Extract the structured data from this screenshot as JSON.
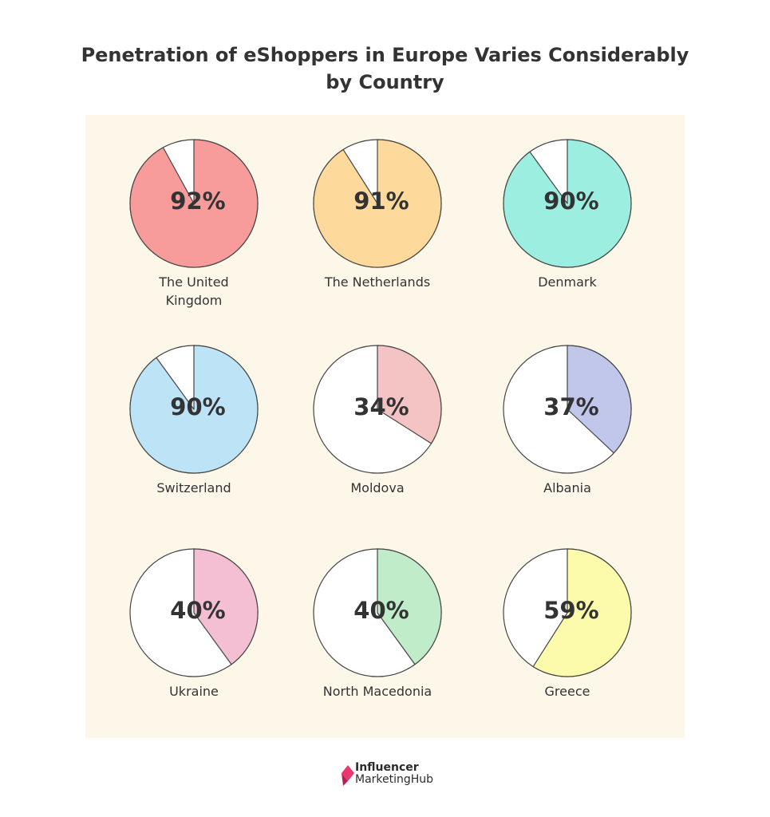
{
  "title_line1": "Penetration of eShoppers in Europe Varies Considerably",
  "title_line2": "by Country",
  "chart_data": {
    "type": "pie",
    "title": "Penetration of eShoppers in Europe Varies Considerably by Country",
    "pies": [
      {
        "country": "The United Kingdom",
        "label_lines": [
          "The United",
          "Kingdom"
        ],
        "value": 92,
        "value_label": "92%",
        "color": "#f79b9b"
      },
      {
        "country": "The Netherlands",
        "label_lines": [
          "The Netherlands"
        ],
        "value": 91,
        "value_label": "91%",
        "color": "#fdd99b"
      },
      {
        "country": "Denmark",
        "label_lines": [
          "Denmark"
        ],
        "value": 90,
        "value_label": "90%",
        "color": "#9cefe0"
      },
      {
        "country": "Switzerland",
        "label_lines": [
          "Switzerland"
        ],
        "value": 90,
        "value_label": "90%",
        "color": "#bde3f7"
      },
      {
        "country": "Moldova",
        "label_lines": [
          "Moldova"
        ],
        "value": 34,
        "value_label": "34%",
        "color": "#f4c3c3"
      },
      {
        "country": "Albania",
        "label_lines": [
          "Albania"
        ],
        "value": 37,
        "value_label": "37%",
        "color": "#c0c7ea"
      },
      {
        "country": "Ukraine",
        "label_lines": [
          "Ukraine"
        ],
        "value": 40,
        "value_label": "40%",
        "color": "#f5bfd3"
      },
      {
        "country": "North Macedonia",
        "label_lines": [
          "North Macedonia"
        ],
        "value": 40,
        "value_label": "40%",
        "color": "#c0ecca"
      },
      {
        "country": "Greece",
        "label_lines": [
          "Greece"
        ],
        "value": 59,
        "value_label": "59%",
        "color": "#fbfbab"
      }
    ],
    "remainder_color": "#ffffff",
    "outline_color": "#444444"
  },
  "logo": {
    "line1": "Influencer",
    "line2": "MarketingHub",
    "mark_color": "#e8386d"
  }
}
